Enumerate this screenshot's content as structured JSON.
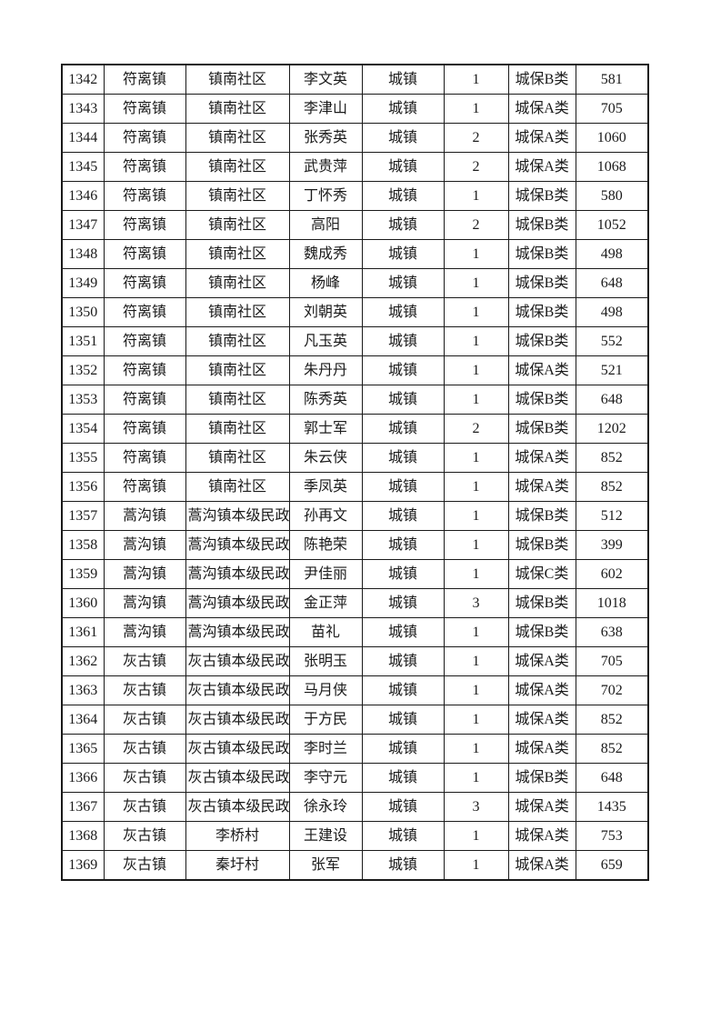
{
  "page": {
    "background_color": "#ffffff",
    "text_color": "#1a1a1a",
    "border_color": "#1a1a1a"
  },
  "table": {
    "column_semantics": [
      "row-number",
      "town",
      "community",
      "person-name",
      "residence-type",
      "person-count",
      "assistance-category",
      "amount"
    ],
    "rows": [
      [
        "1342",
        "符离镇",
        "镇南社区",
        "李文英",
        "城镇",
        "1",
        "城保B类",
        "581"
      ],
      [
        "1343",
        "符离镇",
        "镇南社区",
        "李津山",
        "城镇",
        "1",
        "城保A类",
        "705"
      ],
      [
        "1344",
        "符离镇",
        "镇南社区",
        "张秀英",
        "城镇",
        "2",
        "城保A类",
        "1060"
      ],
      [
        "1345",
        "符离镇",
        "镇南社区",
        "武贵萍",
        "城镇",
        "2",
        "城保A类",
        "1068"
      ],
      [
        "1346",
        "符离镇",
        "镇南社区",
        "丁怀秀",
        "城镇",
        "1",
        "城保B类",
        "580"
      ],
      [
        "1347",
        "符离镇",
        "镇南社区",
        "高阳",
        "城镇",
        "2",
        "城保B类",
        "1052"
      ],
      [
        "1348",
        "符离镇",
        "镇南社区",
        "魏成秀",
        "城镇",
        "1",
        "城保B类",
        "498"
      ],
      [
        "1349",
        "符离镇",
        "镇南社区",
        "杨峰",
        "城镇",
        "1",
        "城保B类",
        "648"
      ],
      [
        "1350",
        "符离镇",
        "镇南社区",
        "刘朝英",
        "城镇",
        "1",
        "城保B类",
        "498"
      ],
      [
        "1351",
        "符离镇",
        "镇南社区",
        "凡玉英",
        "城镇",
        "1",
        "城保B类",
        "552"
      ],
      [
        "1352",
        "符离镇",
        "镇南社区",
        "朱丹丹",
        "城镇",
        "1",
        "城保A类",
        "521"
      ],
      [
        "1353",
        "符离镇",
        "镇南社区",
        "陈秀英",
        "城镇",
        "1",
        "城保B类",
        "648"
      ],
      [
        "1354",
        "符离镇",
        "镇南社区",
        "郭士军",
        "城镇",
        "2",
        "城保B类",
        "1202"
      ],
      [
        "1355",
        "符离镇",
        "镇南社区",
        "朱云侠",
        "城镇",
        "1",
        "城保A类",
        "852"
      ],
      [
        "1356",
        "符离镇",
        "镇南社区",
        "季凤英",
        "城镇",
        "1",
        "城保A类",
        "852"
      ],
      [
        "1357",
        "蒿沟镇",
        "蒿沟镇本级民政",
        "孙再文",
        "城镇",
        "1",
        "城保B类",
        "512"
      ],
      [
        "1358",
        "蒿沟镇",
        "蒿沟镇本级民政",
        "陈艳荣",
        "城镇",
        "1",
        "城保B类",
        "399"
      ],
      [
        "1359",
        "蒿沟镇",
        "蒿沟镇本级民政",
        "尹佳丽",
        "城镇",
        "1",
        "城保C类",
        "602"
      ],
      [
        "1360",
        "蒿沟镇",
        "蒿沟镇本级民政",
        "金正萍",
        "城镇",
        "3",
        "城保B类",
        "1018"
      ],
      [
        "1361",
        "蒿沟镇",
        "蒿沟镇本级民政",
        "苗礼",
        "城镇",
        "1",
        "城保B类",
        "638"
      ],
      [
        "1362",
        "灰古镇",
        "灰古镇本级民政",
        "张明玉",
        "城镇",
        "1",
        "城保A类",
        "705"
      ],
      [
        "1363",
        "灰古镇",
        "灰古镇本级民政",
        "马月侠",
        "城镇",
        "1",
        "城保A类",
        "702"
      ],
      [
        "1364",
        "灰古镇",
        "灰古镇本级民政",
        "于方民",
        "城镇",
        "1",
        "城保A类",
        "852"
      ],
      [
        "1365",
        "灰古镇",
        "灰古镇本级民政",
        "李时兰",
        "城镇",
        "1",
        "城保A类",
        "852"
      ],
      [
        "1366",
        "灰古镇",
        "灰古镇本级民政",
        "李守元",
        "城镇",
        "1",
        "城保B类",
        "648"
      ],
      [
        "1367",
        "灰古镇",
        "灰古镇本级民政",
        "徐永玲",
        "城镇",
        "3",
        "城保A类",
        "1435"
      ],
      [
        "1368",
        "灰古镇",
        "李桥村",
        "王建设",
        "城镇",
        "1",
        "城保A类",
        "753"
      ],
      [
        "1369",
        "灰古镇",
        "秦圩村",
        "张军",
        "城镇",
        "1",
        "城保A类",
        "659"
      ]
    ]
  }
}
